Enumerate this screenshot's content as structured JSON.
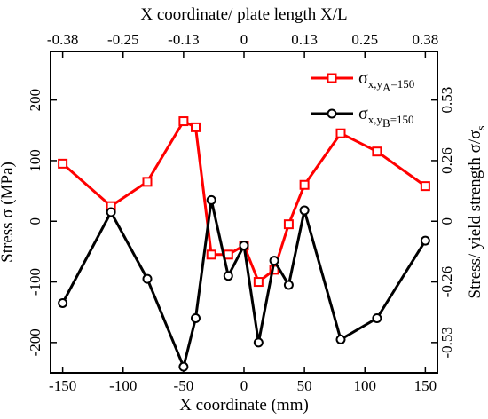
{
  "chart_data": {
    "type": "line",
    "xlabel": "X coordinate (mm)",
    "ylabel": "Stress σ (MPa)",
    "top_xlabel": "X coordinate/ plate length X/L",
    "right_ylabel": "Stress/ yield strength σ/σ",
    "right_ylabel_sub": "s",
    "xlim": [
      -160,
      160
    ],
    "ylim": [
      -250,
      280
    ],
    "x_ticks": [
      -150,
      -100,
      -50,
      0,
      50,
      100,
      150
    ],
    "y_ticks": [
      -200,
      -100,
      0,
      100,
      200
    ],
    "top_ticks": [
      {
        "x": -150,
        "label": "-0.38"
      },
      {
        "x": -100,
        "label": "-0.25"
      },
      {
        "x": -50,
        "label": "-0.13"
      },
      {
        "x": 0,
        "label": "0"
      },
      {
        "x": 50,
        "label": "0.13"
      },
      {
        "x": 100,
        "label": "0.25"
      },
      {
        "x": 150,
        "label": "0.38"
      }
    ],
    "right_ticks": [
      {
        "y": 200,
        "label": "0.53"
      },
      {
        "y": 100,
        "label": "0.26"
      },
      {
        "y": 0,
        "label": "0"
      },
      {
        "y": -100,
        "label": "-0.26"
      },
      {
        "y": -200,
        "label": "-0.53"
      }
    ],
    "series": [
      {
        "name": "σ",
        "name_sub_x": "x,",
        "name_sub_y": "y",
        "name_sub_letter": "A",
        "name_suffix": "=150",
        "color": "#ff0000",
        "marker": "square",
        "x": [
          -150,
          -110,
          -80,
          -50,
          -40,
          -27,
          -13,
          0,
          12,
          25,
          37,
          50,
          80,
          110,
          150
        ],
        "y": [
          95,
          25,
          65,
          165,
          155,
          -55,
          -55,
          -40,
          -100,
          -80,
          -5,
          60,
          145,
          115,
          58
        ]
      },
      {
        "name": "σ",
        "name_sub_x": "x,",
        "name_sub_y": "y",
        "name_sub_letter": "B",
        "name_suffix": "=150",
        "color": "#000000",
        "marker": "circle",
        "x": [
          -150,
          -110,
          -80,
          -50,
          -40,
          -27,
          -13,
          0,
          12,
          25,
          37,
          50,
          80,
          110,
          150
        ],
        "y": [
          -135,
          15,
          -95,
          -240,
          -160,
          35,
          -90,
          -40,
          -200,
          -65,
          -105,
          18,
          -195,
          -160,
          -32
        ]
      }
    ]
  }
}
